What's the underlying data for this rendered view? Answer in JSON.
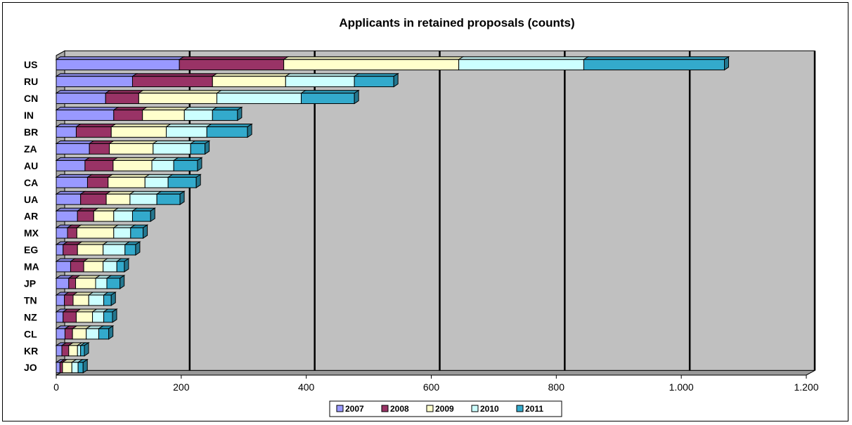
{
  "chart_data": {
    "type": "bar",
    "orientation": "horizontal",
    "stacked": true,
    "title": "Applicants in retained proposals (counts)",
    "xlabel": "",
    "ylabel": "",
    "xlim": [
      0,
      1200
    ],
    "xticks": [
      0,
      200,
      400,
      600,
      800,
      1000,
      1200
    ],
    "xtick_labels": [
      "0",
      "200",
      "400",
      "600",
      "800",
      "1.000",
      "1.200"
    ],
    "grid": true,
    "legend_position": "bottom",
    "categories": [
      "US",
      "RU",
      "CN",
      "IN",
      "BR",
      "ZA",
      "AU",
      "CA",
      "UA",
      "AR",
      "MX",
      "EG",
      "MA",
      "JP",
      "TN",
      "NZ",
      "CL",
      "KR",
      "JO"
    ],
    "series": [
      {
        "name": "2007",
        "color": "#9999ff",
        "values": [
          197,
          122,
          79,
          92,
          32,
          53,
          46,
          50,
          39,
          34,
          18,
          11,
          23,
          20,
          13,
          11,
          14,
          9,
          6
        ]
      },
      {
        "name": "2008",
        "color": "#993366",
        "values": [
          167,
          128,
          53,
          46,
          56,
          32,
          45,
          33,
          41,
          26,
          15,
          23,
          21,
          11,
          14,
          21,
          12,
          11,
          4
        ]
      },
      {
        "name": "2009",
        "color": "#ffffcc",
        "values": [
          280,
          117,
          125,
          67,
          88,
          70,
          62,
          59,
          38,
          32,
          59,
          41,
          31,
          32,
          25,
          26,
          22,
          14,
          15
        ]
      },
      {
        "name": "2010",
        "color": "#ccffff",
        "values": [
          200,
          110,
          135,
          45,
          65,
          60,
          35,
          37,
          43,
          30,
          27,
          35,
          22,
          18,
          24,
          18,
          20,
          5,
          10
        ]
      },
      {
        "name": "2011",
        "color": "#33aacc",
        "values": [
          225,
          63,
          85,
          40,
          65,
          23,
          38,
          45,
          37,
          29,
          20,
          17,
          12,
          21,
          12,
          14,
          16,
          6,
          8
        ]
      }
    ]
  }
}
